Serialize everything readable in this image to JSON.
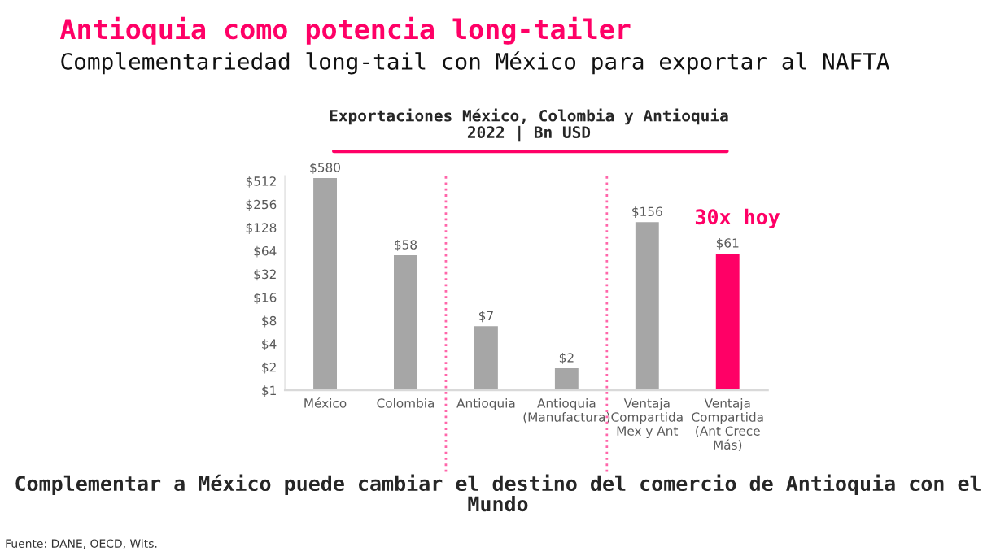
{
  "chart_data": {
    "type": "bar",
    "title": "Antioquia como potencia long-tailer",
    "subtitle": "Complementariedad long-tail con México para exportar al NAFTA",
    "categories": [
      "México",
      "Colombia",
      "Antioquia",
      "Antioquia\n(Manufactura)",
      "Ventaja\nCompartida\nMex y Ant",
      "Ventaja\nCompartida\n(Ant Crece\nMás)"
    ],
    "values": [
      580,
      58,
      7,
      2,
      156,
      61
    ],
    "colors": [
      "#a6a6a6",
      "#a6a6a6",
      "#a6a6a6",
      "#a6a6a6",
      "#a6a6a6",
      "#ff0066"
    ],
    "value_labels": [
      "$580",
      "$58",
      "$7",
      "$2",
      "$156",
      "$61"
    ],
    "log": "y",
    "ylim": [
      1,
      600
    ],
    "yticks": [
      {
        "value": 1,
        "label": "$1"
      },
      {
        "value": 2,
        "label": "$2"
      },
      {
        "value": 4,
        "label": "$4"
      },
      {
        "value": 8,
        "label": "$8"
      },
      {
        "value": 16,
        "label": "$16"
      },
      {
        "value": 32,
        "label": "$32"
      },
      {
        "value": 64,
        "label": "$64"
      },
      {
        "value": 128,
        "label": "$128"
      },
      {
        "value": 256,
        "label": "$256"
      },
      {
        "value": 512,
        "label": "$512"
      }
    ],
    "grid": false,
    "annotations": [
      "Exportaciones México, Colombia y Antioquia\n2022 | Bn USD",
      "30x hoy",
      "Complementar a México puede cambiar el destino del comercio de Antioquia con el Mundo",
      "Fuente: DANE, OECD, Wits."
    ]
  }
}
